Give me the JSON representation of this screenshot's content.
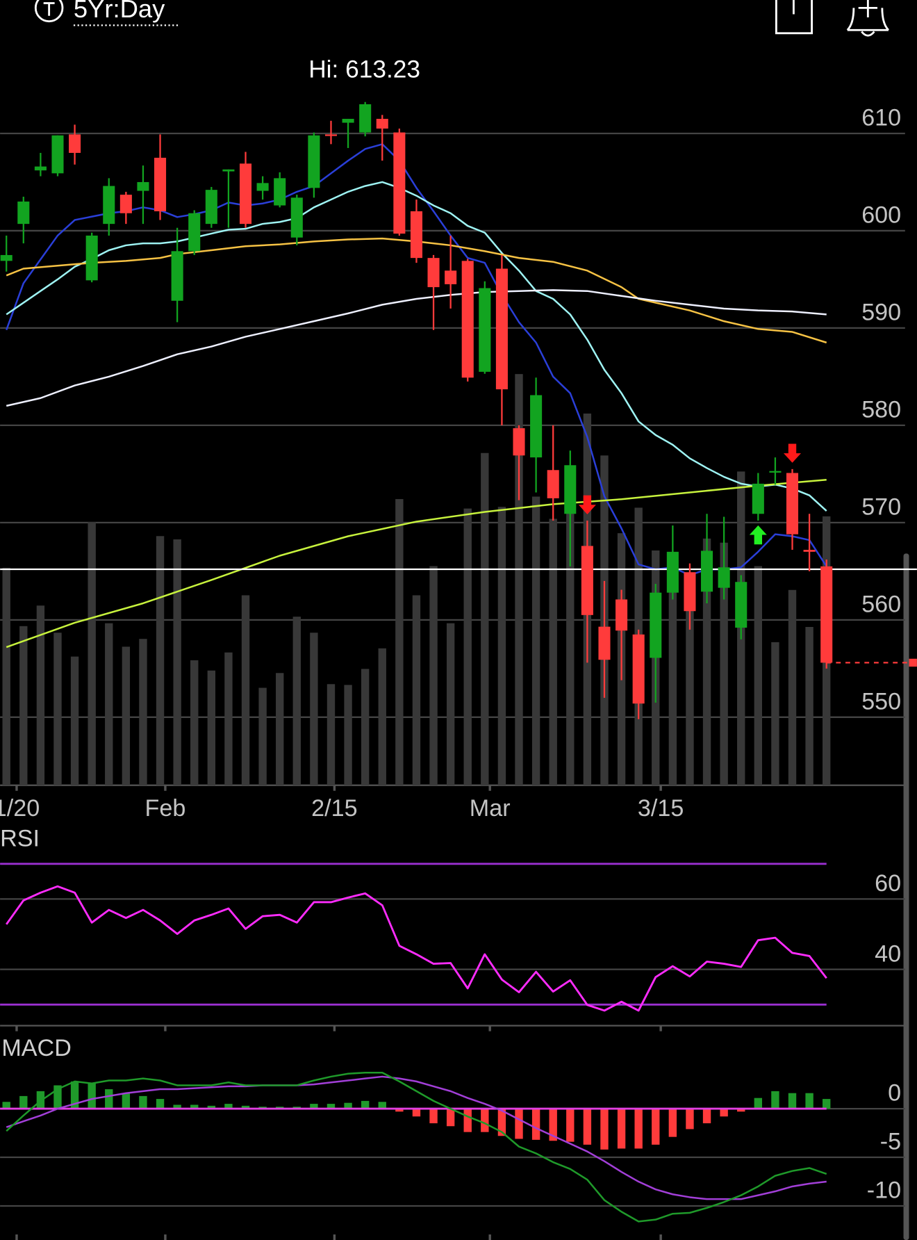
{
  "header": {
    "period": "5Yr:Day"
  },
  "chart_data": [
    {
      "type": "candlestick",
      "annotation": "Hi: 613.23",
      "open": [
        596.9,
        600.7,
        606.2,
        605.9,
        609.9,
        594.9,
        600.7,
        603.7,
        604.1,
        607.5,
        592.8,
        597.9,
        600.7,
        606.1,
        606.9,
        604.1,
        602.6,
        599.3,
        604.4,
        609.9,
        611.1,
        610.1,
        611.5,
        610.1,
        602.0,
        597.2,
        595.9,
        596.9,
        585.5,
        596.1,
        579.7,
        576.7,
        575.4,
        570.9,
        567.6,
        559.3,
        562.1,
        558.5,
        556.1,
        562.8,
        564.9,
        562.9,
        563.3,
        559.2,
        570.9,
        575.2,
        575.1,
        567.2,
        565.5
      ],
      "high": [
        599.5,
        603.5,
        608.0,
        609.8,
        610.9,
        599.8,
        605.4,
        604.0,
        606.7,
        609.9,
        600.3,
        602.1,
        604.5,
        606.3,
        608.1,
        605.6,
        606.0,
        603.7,
        610.1,
        611.3,
        611.5,
        613.23,
        611.9,
        610.5,
        603.2,
        597.5,
        599.5,
        597.1,
        594.8,
        597.5,
        580.0,
        584.9,
        580.0,
        577.4,
        570.2,
        564.0,
        563.1,
        559.0,
        563.7,
        569.7,
        565.8,
        570.9,
        570.6,
        564.6,
        575.1,
        576.7,
        575.5,
        570.9,
        566.2
      ],
      "low": [
        595.8,
        598.7,
        605.6,
        605.6,
        606.8,
        594.7,
        599.5,
        600.7,
        600.7,
        601.1,
        590.6,
        597.5,
        600.3,
        600.3,
        600.3,
        603.2,
        602.4,
        598.5,
        603.4,
        608.9,
        608.5,
        609.7,
        607.2,
        599.5,
        596.7,
        589.8,
        592.0,
        584.5,
        585.3,
        580.0,
        572.3,
        573.1,
        570.2,
        565.5,
        555.6,
        552.0,
        553.8,
        549.8,
        551.5,
        562.1,
        559.0,
        561.7,
        562.1,
        558.0,
        570.2,
        573.9,
        567.2,
        565.0,
        555.0
      ],
      "close": [
        597.5,
        603.0,
        606.6,
        609.8,
        608.0,
        599.5,
        604.6,
        601.8,
        605.0,
        602.0,
        597.9,
        601.8,
        604.2,
        606.3,
        600.7,
        604.9,
        605.4,
        603.4,
        609.8,
        609.8,
        611.5,
        613.0,
        610.5,
        599.7,
        597.2,
        594.2,
        594.5,
        584.9,
        594.1,
        583.7,
        576.9,
        583.1,
        572.5,
        575.9,
        560.5,
        555.9,
        558.9,
        551.4,
        562.8,
        567.0,
        560.9,
        567.1,
        565.4,
        563.9,
        574.0,
        575.3,
        568.8,
        567.0,
        555.6
      ],
      "up_color": "#12a420",
      "down_color": "#ff3b3b",
      "volume": [
        52.9,
        38.7,
        43.7,
        37.1,
        31.3,
        64.0,
        39.4,
        33.7,
        35.6,
        60.6,
        59.8,
        30.4,
        27.9,
        32.3,
        46.2,
        23.7,
        27.3,
        41.0,
        37.1,
        24.6,
        24.4,
        28.3,
        33.3,
        69.6,
        46.2,
        53.3,
        39.4,
        67.3,
        80.8,
        67.7,
        100,
        70.2,
        64.8,
        68.8,
        90.4,
        80.2,
        61.3,
        67.5,
        57.1,
        56.3,
        44.8,
        60.0,
        59.0,
        76.3,
        53.3,
        34.8,
        47.5,
        38.5,
        65.4
      ],
      "volume_color": "#383838",
      "lines": [
        {
          "color": "#2a3fd8",
          "x": [
            0,
            1,
            3,
            4,
            6,
            7,
            8,
            9,
            10,
            11,
            12,
            13,
            14,
            15,
            16,
            17,
            18,
            19,
            20,
            21,
            22,
            23,
            24,
            25,
            26,
            27,
            28,
            29,
            30,
            31,
            32,
            33,
            34,
            35,
            36,
            37,
            38,
            39,
            40,
            41,
            42,
            43,
            44,
            45,
            46,
            47,
            48
          ],
          "values": [
            589.8,
            594.6,
            599.5,
            601.1,
            601.8,
            602.0,
            602.4,
            602.1,
            601.4,
            601.7,
            602.1,
            602.9,
            602.6,
            602.8,
            603.2,
            604.0,
            604.6,
            605.9,
            607.2,
            608.4,
            608.9,
            607.2,
            604.4,
            602.0,
            599.5,
            597.2,
            596.7,
            593.4,
            590.6,
            588.5,
            585.0,
            583.3,
            578.8,
            572.7,
            569.4,
            565.7,
            565.2,
            565.4,
            564.6,
            565.2,
            565.2,
            565.4,
            567.0,
            568.8,
            568.6,
            568.2,
            565.5
          ]
        },
        {
          "color": "#9ef3f3",
          "x": [
            0,
            1,
            2,
            3,
            4,
            5,
            6,
            7,
            8,
            9,
            10,
            11,
            12,
            13,
            14,
            15,
            16,
            17,
            18,
            19,
            20,
            21,
            22,
            23,
            24,
            25,
            26,
            27,
            28,
            29,
            30,
            31,
            32,
            33,
            34,
            35,
            36,
            37,
            38,
            39,
            40,
            41,
            42,
            43,
            44,
            45,
            46,
            47,
            48
          ],
          "values": [
            591.4,
            592.6,
            593.8,
            595.0,
            596.3,
            597.1,
            598.0,
            598.5,
            598.7,
            598.7,
            598.9,
            599.3,
            599.7,
            600.1,
            600.2,
            600.7,
            600.9,
            601.3,
            602.4,
            603.2,
            604.0,
            604.6,
            605.0,
            604.4,
            603.6,
            602.6,
            601.8,
            600.5,
            599.8,
            597.7,
            595.9,
            593.8,
            593.0,
            591.4,
            588.8,
            585.7,
            583.3,
            580.4,
            579.0,
            578.0,
            576.6,
            575.6,
            574.7,
            574.0,
            573.7,
            573.9,
            573.5,
            572.8,
            571.2
          ]
        },
        {
          "color": "#f6c244",
          "x": [
            0,
            1,
            3,
            5,
            7,
            9,
            10,
            12,
            14,
            16,
            18,
            20,
            22,
            24,
            26,
            28,
            30,
            32,
            34,
            36,
            37,
            38,
            40,
            42,
            44,
            46,
            48
          ],
          "values": [
            595.4,
            596.1,
            596.4,
            596.7,
            596.9,
            597.2,
            597.6,
            598.0,
            598.4,
            598.6,
            598.9,
            599.1,
            599.2,
            598.9,
            598.5,
            597.9,
            597.2,
            596.8,
            595.9,
            594.2,
            593.0,
            592.6,
            591.8,
            590.7,
            589.9,
            589.6,
            588.5
          ]
        },
        {
          "color": "#eef0ff",
          "x": [
            0,
            2,
            4,
            6,
            8,
            10,
            12,
            14,
            16,
            18,
            20,
            22,
            24,
            26,
            28,
            30,
            32,
            34,
            36,
            38,
            40,
            42,
            44,
            46,
            48
          ],
          "values": [
            582.0,
            582.8,
            584.1,
            585.0,
            586.1,
            587.3,
            588.1,
            589.1,
            589.9,
            590.7,
            591.5,
            592.4,
            593.0,
            593.4,
            593.7,
            593.8,
            593.9,
            593.8,
            593.3,
            592.8,
            592.4,
            592.0,
            591.8,
            591.7,
            591.4
          ]
        },
        {
          "color": "#c7f23d",
          "x": [
            0,
            4,
            8,
            12,
            16,
            20,
            24,
            28,
            32,
            36,
            40,
            44,
            48
          ],
          "values": [
            557.2,
            559.7,
            561.7,
            564.1,
            566.6,
            568.6,
            570.1,
            571.1,
            571.9,
            572.4,
            573.1,
            573.8,
            574.4
          ]
        }
      ],
      "reference_line": 565.2,
      "buy_signals": [
        44
      ],
      "sell_signals": [
        34,
        46
      ],
      "ylim": [
        543,
        619
      ],
      "yticks": [
        550,
        560,
        570,
        580,
        590,
        600,
        610
      ],
      "xlim": [
        -0.37,
        52.6
      ],
      "xticks": [
        {
          "value": 0.6,
          "label": "1/20"
        },
        {
          "value": 9.3,
          "label": "Feb"
        },
        {
          "value": 19.2,
          "label": "2/15"
        },
        {
          "value": 28.3,
          "label": "Mar"
        },
        {
          "value": 38.3,
          "label": "3/15"
        }
      ],
      "grid": true
    },
    {
      "type": "line",
      "title": "RSI",
      "color": "#ff2cff",
      "values": [
        52.8,
        59.6,
        61.8,
        63.6,
        61.8,
        53.3,
        56.9,
        54.6,
        56.9,
        53.9,
        50.1,
        53.9,
        55.5,
        57.3,
        51.5,
        55.1,
        55.5,
        53.3,
        59.1,
        59.1,
        60.4,
        61.6,
        58.2,
        46.7,
        44.3,
        41.6,
        41.8,
        34.6,
        44.3,
        37.1,
        33.5,
        39.3,
        33.7,
        36.9,
        29.9,
        28.3,
        30.8,
        28.3,
        37.8,
        40.9,
        38.0,
        42.2,
        41.6,
        40.7,
        48.3,
        49.0,
        44.7,
        43.8,
        37.5
      ],
      "levels": [
        30,
        70
      ],
      "level_color": "#9a2fd0",
      "ylim": [
        24,
        74
      ],
      "yticks": [
        40,
        60
      ],
      "grid": true
    },
    {
      "type": "macd",
      "title": "MACD",
      "macd": [
        -2.3,
        -0.7,
        0.8,
        2.0,
        2.8,
        2.6,
        2.9,
        2.9,
        3.1,
        2.9,
        2.4,
        2.4,
        2.4,
        2.7,
        2.4,
        2.4,
        2.4,
        2.4,
        2.9,
        3.3,
        3.6,
        3.7,
        3.7,
        2.8,
        1.8,
        0.8,
        0.0,
        -0.8,
        -1.5,
        -2.4,
        -3.9,
        -4.6,
        -5.5,
        -6.2,
        -7.3,
        -9.4,
        -10.6,
        -11.6,
        -11.4,
        -10.8,
        -10.7,
        -10.2,
        -9.6,
        -8.9,
        -8.0,
        -6.9,
        -6.4,
        -6.1,
        -6.7
      ],
      "signal": [
        -1.9,
        -1.3,
        -0.7,
        0.0,
        0.5,
        1.0,
        1.3,
        1.6,
        1.8,
        2.0,
        2.0,
        2.1,
        2.2,
        2.3,
        2.3,
        2.4,
        2.4,
        2.4,
        2.5,
        2.7,
        2.9,
        3.1,
        3.3,
        3.1,
        2.8,
        2.3,
        1.8,
        1.1,
        0.5,
        -0.2,
        -1.1,
        -2.0,
        -2.8,
        -3.6,
        -4.4,
        -5.4,
        -6.5,
        -7.5,
        -8.3,
        -8.8,
        -9.1,
        -9.3,
        -9.3,
        -9.3,
        -8.9,
        -8.5,
        -8.0,
        -7.7,
        -7.5
      ],
      "histogram": [
        0.7,
        1.3,
        1.8,
        2.4,
        2.8,
        2.6,
        2.0,
        1.6,
        1.3,
        1.0,
        0.4,
        0.4,
        0.3,
        0.5,
        0.3,
        0.2,
        0.2,
        0.2,
        0.5,
        0.5,
        0.6,
        0.8,
        0.7,
        -0.3,
        -0.8,
        -1.5,
        -1.8,
        -2.4,
        -2.4,
        -2.8,
        -3.1,
        -3.2,
        -3.3,
        -3.4,
        -3.7,
        -4.2,
        -4.1,
        -4.1,
        -3.7,
        -2.9,
        -2.1,
        -1.5,
        -0.8,
        -0.3,
        1.1,
        1.8,
        1.6,
        1.6,
        1.0
      ],
      "macd_color": "#1f9a2a",
      "signal_color": "#a23fd8",
      "up_color": "#1f9a2a",
      "down_color": "#ff3b3b",
      "zero_line_color": "#e23fe2",
      "ylim": [
        -13.5,
        7.5
      ],
      "yticks": [
        0,
        -5,
        -10
      ],
      "grid": true
    }
  ]
}
